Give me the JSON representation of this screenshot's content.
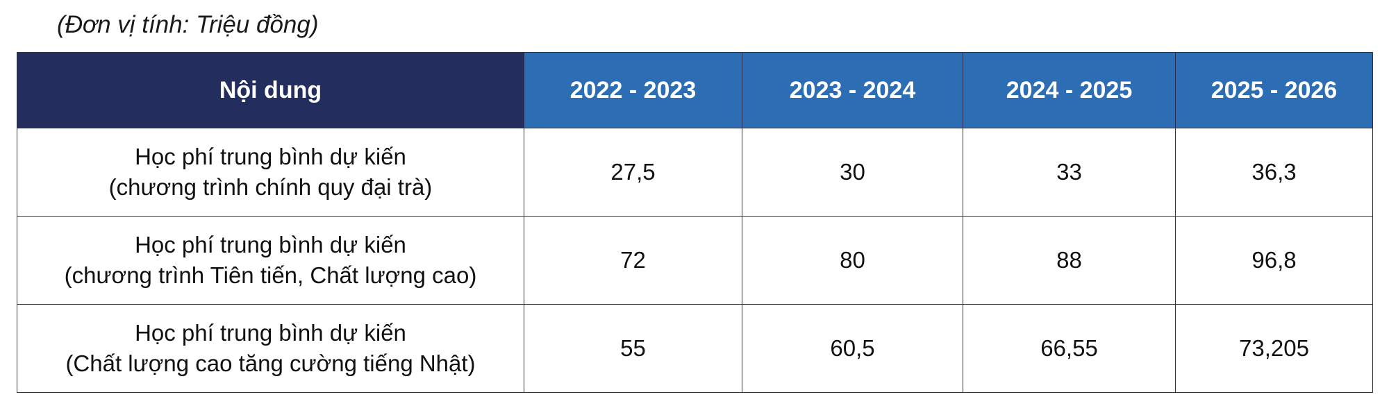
{
  "unit_note": "(Đơn vị tính: Triệu đồng)",
  "table": {
    "header": {
      "content": "Nội dung",
      "years": [
        "2022 - 2023",
        "2023 - 2024",
        "2024 - 2025",
        "2025 - 2026"
      ]
    },
    "rows": [
      {
        "label_line1": "Học phí trung bình dự kiến",
        "label_line2": "(chương trình chính quy đại trà)",
        "values": [
          "27,5",
          "30",
          "33",
          "36,3"
        ]
      },
      {
        "label_line1": "Học phí trung bình dự kiến",
        "label_line2": "(chương trình Tiên tiến, Chất lượng cao)",
        "values": [
          "72",
          "80",
          "88",
          "96,8"
        ]
      },
      {
        "label_line1": "Học phí trung bình dự kiến",
        "label_line2": "(Chất lượng cao tăng cường tiếng Nhật)",
        "values": [
          "55",
          "60,5",
          "66,55",
          "73,205"
        ]
      }
    ]
  },
  "colors": {
    "header_content_bg": "#232e5e",
    "header_year_bg": "#2d6db4",
    "header_text": "#ffffff",
    "border": "#333333"
  }
}
